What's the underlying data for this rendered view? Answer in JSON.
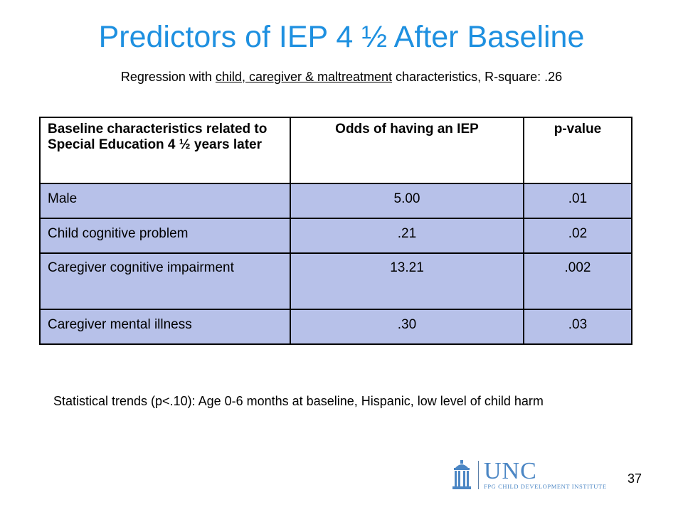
{
  "slide": {
    "title": "Predictors of IEP 4 ½ After Baseline",
    "subtitle": {
      "prefix": "Regression with ",
      "underlined": "child, caregiver & maltreatment",
      "suffix": " characteristics, R-square: .26"
    },
    "table": {
      "headers": [
        "Baseline characteristics related to Special Education 4 ½ years later",
        "Odds of having an IEP",
        "p-value"
      ],
      "rows": [
        [
          "Male",
          "5.00",
          ".01"
        ],
        [
          "Child cognitive problem",
          ".21",
          ".02"
        ],
        [
          "Caregiver cognitive impairment",
          "13.21",
          ".002"
        ],
        [
          "Caregiver mental illness",
          ".30",
          ".03"
        ]
      ]
    },
    "footnote": "Statistical trends (p<.10): Age 0-6 months at baseline, Hispanic, low level of child harm",
    "logo": {
      "name": "UNC",
      "institute": "FPG CHILD DEVELOPMENT INSTITUTE"
    },
    "slide_number": "37"
  },
  "colors": {
    "title": "#1e90e0",
    "row_fill": "#b7c1e9",
    "logo": "#4b86c4"
  }
}
